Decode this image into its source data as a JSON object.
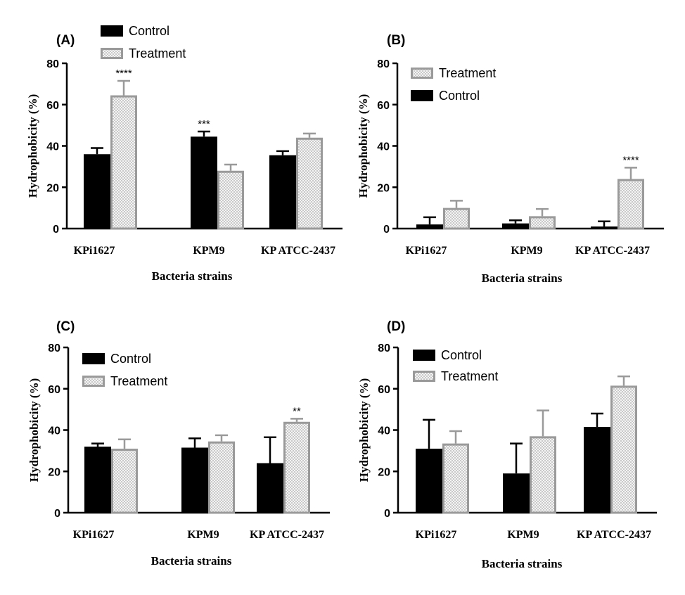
{
  "chart_data": [
    {
      "panel": "(A)",
      "type": "bar",
      "categories": [
        "KPi1627",
        "KPM9",
        "KP ATCC-2437"
      ],
      "series": [
        {
          "name": "Control",
          "values": [
            36,
            44.5,
            35.5
          ],
          "errors": [
            3,
            2.5,
            2
          ]
        },
        {
          "name": "Treatment",
          "values": [
            64.5,
            28,
            44
          ],
          "errors": [
            7,
            3,
            2
          ]
        }
      ],
      "legend_order": [
        "Control",
        "Treatment"
      ],
      "significance": [
        {
          "category": 0,
          "series": 1,
          "label": "****"
        },
        {
          "category": 1,
          "series": 0,
          "label": "***"
        }
      ],
      "xlabel": "Bacteria strains",
      "ylabel": "Hydrophobicity (%)",
      "ylim": [
        0,
        80
      ],
      "yticks": [
        0,
        20,
        40,
        60,
        80
      ],
      "legend_position": "top-left"
    },
    {
      "panel": "(B)",
      "type": "bar",
      "categories": [
        "KPi1627",
        "KPM9",
        "KP ATCC-2437"
      ],
      "series": [
        {
          "name": "Control",
          "values": [
            2,
            2.5,
            1
          ],
          "errors": [
            3.5,
            1.5,
            2.5
          ]
        },
        {
          "name": "Treatment",
          "values": [
            10,
            6,
            24
          ],
          "errors": [
            3.5,
            3.5,
            5.5
          ]
        }
      ],
      "legend_order": [
        "Treatment",
        "Control"
      ],
      "significance": [
        {
          "category": 2,
          "series": 1,
          "label": "****"
        }
      ],
      "xlabel": "Bacteria strains",
      "ylabel": "Hydrophobicity (%)",
      "ylim": [
        0,
        80
      ],
      "yticks": [
        0,
        20,
        40,
        60,
        80
      ],
      "legend_position": "top-left"
    },
    {
      "panel": "(C)",
      "type": "bar",
      "categories": [
        "KPi1627",
        "KPM9",
        "KP ATCC-2437"
      ],
      "series": [
        {
          "name": "Control",
          "values": [
            32,
            31.5,
            24
          ],
          "errors": [
            1.5,
            4.5,
            12.5
          ]
        },
        {
          "name": "Treatment",
          "values": [
            31,
            34.5,
            44
          ],
          "errors": [
            4.5,
            3,
            1.5
          ]
        }
      ],
      "legend_order": [
        "Control",
        "Treatment"
      ],
      "significance": [
        {
          "category": 2,
          "series": 1,
          "label": "**"
        }
      ],
      "xlabel": "Bacteria strains",
      "ylabel": "Hydrophobicity (%)",
      "ylim": [
        0,
        80
      ],
      "yticks": [
        0,
        20,
        40,
        60,
        80
      ],
      "legend_position": "top-left"
    },
    {
      "panel": "(D)",
      "type": "bar",
      "categories": [
        "KPi1627",
        "KPM9",
        "KP ATCC-2437"
      ],
      "series": [
        {
          "name": "Control",
          "values": [
            31,
            19,
            41.5
          ],
          "errors": [
            14,
            14.5,
            6.5
          ]
        },
        {
          "name": "Treatment",
          "values": [
            33.5,
            37,
            61.5
          ],
          "errors": [
            6,
            12.5,
            4.5
          ]
        }
      ],
      "legend_order": [
        "Control",
        "Treatment"
      ],
      "significance": [],
      "xlabel": "Bacteria strains",
      "ylabel": "Hydrophobicity (%)",
      "ylim": [
        0,
        80
      ],
      "yticks": [
        0,
        20,
        40,
        60,
        80
      ],
      "legend_position": "top-left"
    }
  ],
  "colors": {
    "control_fill": "#000000",
    "treatment_stroke": "#9a9a9a",
    "treatment_fill": "#f3f3f3",
    "axis": "#000000"
  }
}
